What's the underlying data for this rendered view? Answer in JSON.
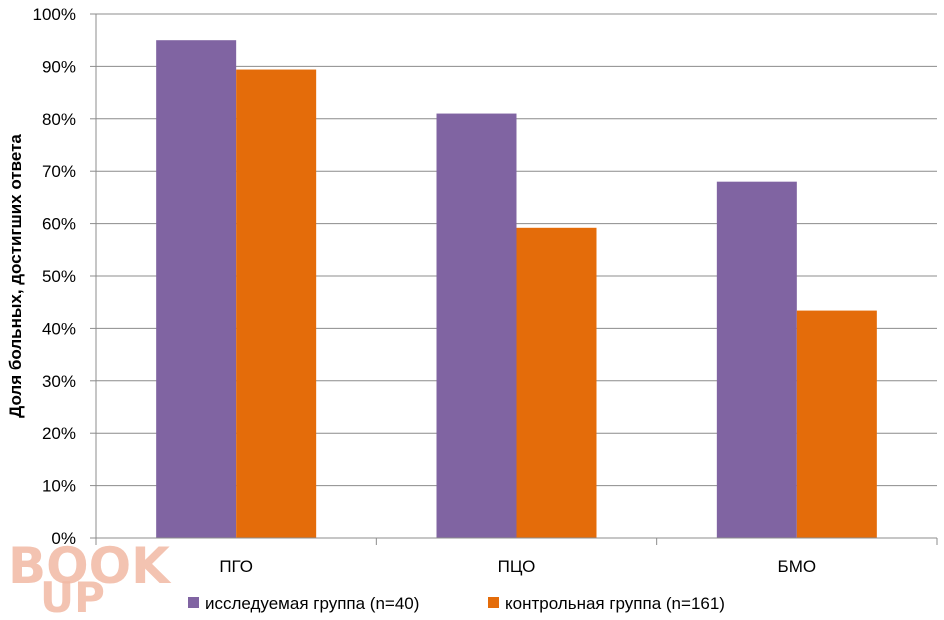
{
  "chart_data": {
    "type": "bar",
    "categories": [
      "ПГО",
      "ПЦО",
      "БМО"
    ],
    "series": [
      {
        "name": "исследуемая группа (n=40)",
        "values": [
          95,
          81,
          68
        ],
        "color": "#8064a2"
      },
      {
        "name": "контрольная группа (n=161)",
        "values": [
          89.4,
          59.2,
          43.4
        ],
        "color": "#e46c0a"
      }
    ],
    "ylabel": "Доля больных, достигших ответа",
    "ylim": [
      0,
      100
    ],
    "yticks": [
      "0%",
      "10%",
      "20%",
      "30%",
      "40%",
      "50%",
      "60%",
      "70%",
      "80%",
      "90%",
      "100%"
    ],
    "grid": true,
    "legend": "bottom"
  },
  "watermark": {
    "line1": "BOOK",
    "line2": "UP"
  }
}
